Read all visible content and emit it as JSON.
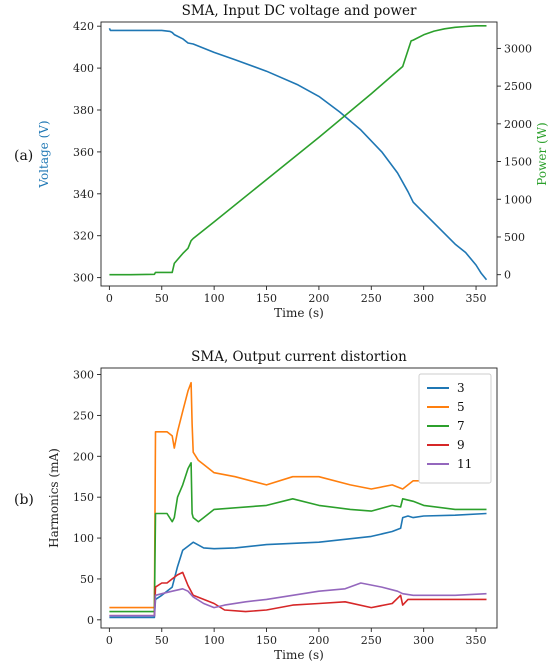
{
  "chart_data": [
    {
      "type": "line",
      "panel_label": "(a)",
      "title": "SMA, Input DC voltage and power",
      "xlabel": "Time (s)",
      "ylabel": "Voltage (V)",
      "y2label": "Power (W)",
      "xlim": [
        -8,
        370
      ],
      "ylim": [
        296,
        422
      ],
      "y2lim": [
        -150,
        3350
      ],
      "xticks": [
        0,
        50,
        100,
        150,
        200,
        250,
        300,
        350
      ],
      "yticks": [
        300,
        320,
        340,
        360,
        380,
        400,
        420
      ],
      "y2ticks": [
        0,
        500,
        1000,
        1500,
        2000,
        2500,
        3000
      ],
      "colors": {
        "voltage": "#1f77b4",
        "power": "#2ca02c"
      },
      "series": [
        {
          "axis": "left",
          "color": "#1f77b4",
          "x": [
            0,
            1,
            10,
            30,
            50,
            58,
            60,
            62,
            70,
            75,
            80,
            100,
            120,
            150,
            180,
            200,
            220,
            240,
            260,
            275,
            285,
            290,
            300,
            310,
            320,
            330,
            340,
            350,
            355,
            360
          ],
          "y": [
            419,
            418,
            418,
            418,
            418,
            417.5,
            417,
            416,
            414,
            412,
            411.5,
            407.5,
            404,
            398.5,
            392,
            386.5,
            379,
            370.5,
            360,
            350,
            341,
            336,
            331,
            326,
            321,
            316,
            312,
            306,
            302,
            299
          ]
        },
        {
          "axis": "right",
          "color": "#2ca02c",
          "x": [
            0,
            20,
            43,
            44,
            60,
            62,
            65,
            70,
            75,
            78,
            80,
            100,
            150,
            200,
            250,
            280,
            288,
            290,
            300,
            310,
            320,
            330,
            340,
            350,
            360
          ],
          "y": [
            0,
            0,
            5,
            30,
            30,
            150,
            200,
            280,
            350,
            450,
            480,
            700,
            1260,
            1820,
            2400,
            2760,
            3100,
            3110,
            3180,
            3230,
            3260,
            3280,
            3290,
            3300,
            3300
          ]
        }
      ]
    },
    {
      "type": "line",
      "panel_label": "(b)",
      "title": "SMA, Output current distortion",
      "xlabel": "Time (s)",
      "ylabel": "Harmonics (mA)",
      "xlim": [
        -8,
        370
      ],
      "ylim": [
        -10,
        308
      ],
      "xticks": [
        0,
        50,
        100,
        150,
        200,
        250,
        300,
        350
      ],
      "yticks": [
        0,
        50,
        100,
        150,
        200,
        250,
        300
      ],
      "legend_position": "top-right",
      "series": [
        {
          "name": "3",
          "color": "#1f77b4",
          "x": [
            0,
            43,
            44,
            50,
            60,
            65,
            70,
            75,
            80,
            90,
            100,
            120,
            150,
            200,
            250,
            270,
            278,
            280,
            285,
            290,
            300,
            330,
            360
          ],
          "y": [
            3,
            3,
            25,
            30,
            40,
            65,
            85,
            90,
            95,
            88,
            87,
            88,
            92,
            95,
            102,
            108,
            112,
            125,
            127,
            125,
            127,
            128,
            130
          ]
        },
        {
          "name": "5",
          "color": "#ff7f0e",
          "x": [
            0,
            43,
            44,
            55,
            60,
            62,
            65,
            70,
            75,
            78,
            79,
            80,
            85,
            90,
            100,
            120,
            150,
            175,
            200,
            230,
            250,
            270,
            280,
            290,
            300,
            330,
            360
          ],
          "y": [
            15,
            15,
            230,
            230,
            225,
            210,
            230,
            255,
            280,
            290,
            240,
            205,
            195,
            190,
            180,
            175,
            165,
            175,
            175,
            165,
            160,
            165,
            160,
            170,
            170,
            172,
            175
          ]
        },
        {
          "name": "7",
          "color": "#2ca02c",
          "x": [
            0,
            43,
            44,
            55,
            60,
            62,
            65,
            70,
            75,
            78,
            79,
            80,
            85,
            90,
            100,
            150,
            175,
            200,
            230,
            250,
            270,
            278,
            280,
            290,
            300,
            330,
            360
          ],
          "y": [
            10,
            10,
            130,
            130,
            120,
            125,
            150,
            165,
            185,
            192,
            130,
            125,
            120,
            125,
            135,
            140,
            148,
            140,
            135,
            133,
            140,
            138,
            148,
            145,
            140,
            135,
            135
          ]
        },
        {
          "name": "9",
          "color": "#d62728",
          "x": [
            0,
            43,
            44,
            50,
            55,
            60,
            65,
            70,
            75,
            80,
            90,
            100,
            110,
            130,
            150,
            175,
            200,
            225,
            250,
            270,
            278,
            280,
            285,
            300,
            330,
            360
          ],
          "y": [
            5,
            5,
            40,
            45,
            45,
            50,
            55,
            58,
            42,
            30,
            25,
            20,
            12,
            10,
            12,
            18,
            20,
            22,
            15,
            20,
            30,
            18,
            25,
            25,
            25,
            25
          ]
        },
        {
          "name": "11",
          "color": "#9467bd",
          "x": [
            0,
            43,
            44,
            50,
            60,
            70,
            75,
            80,
            90,
            100,
            110,
            130,
            150,
            175,
            200,
            225,
            240,
            260,
            275,
            280,
            290,
            300,
            330,
            360
          ],
          "y": [
            5,
            5,
            30,
            32,
            35,
            38,
            35,
            28,
            20,
            15,
            18,
            22,
            25,
            30,
            35,
            38,
            45,
            40,
            35,
            32,
            30,
            30,
            30,
            32
          ]
        }
      ]
    }
  ]
}
